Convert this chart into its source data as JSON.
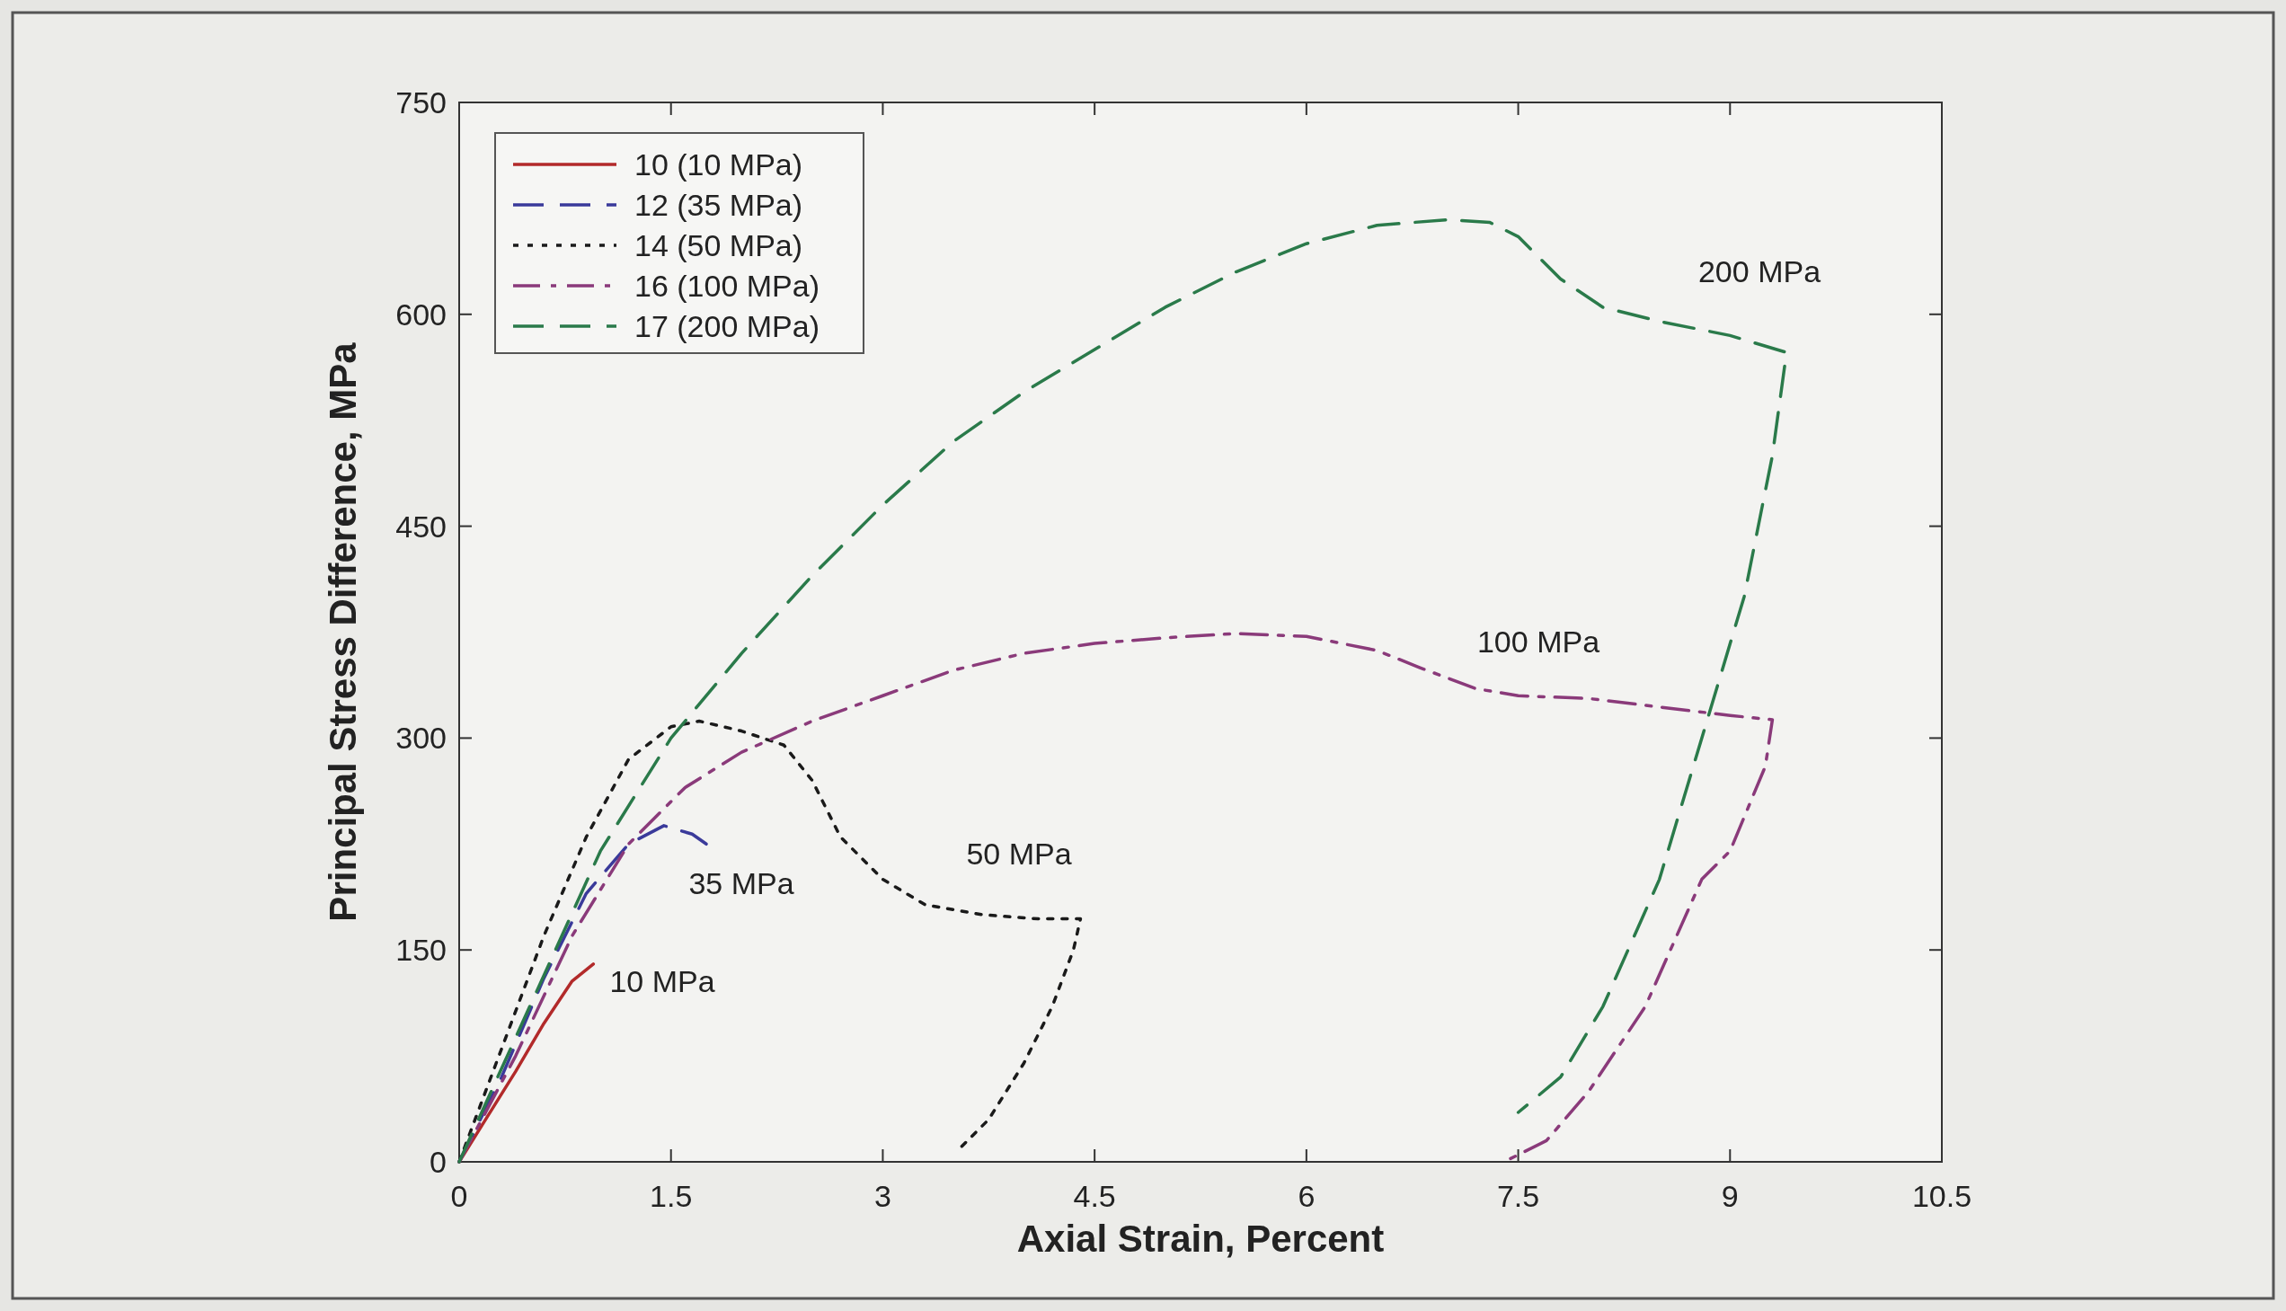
{
  "chart_data": {
    "type": "line",
    "xlabel": "Axial Strain, Percent",
    "ylabel": "Principal Stress Difference, MPa",
    "xlim": [
      0,
      10.5
    ],
    "xticks": [
      0,
      1.5,
      3,
      4.5,
      6,
      7.5,
      9,
      10.5
    ],
    "ylim": [
      0,
      750
    ],
    "yticks": [
      0,
      150,
      300,
      450,
      600,
      750
    ],
    "grid": false,
    "legend": "top left",
    "series": [
      {
        "name": "10 (10 MPa)",
        "color": "#b22a2a",
        "line_style": "solid",
        "x": [
          0,
          0.2,
          0.4,
          0.6,
          0.8,
          0.95
        ],
        "values": [
          0,
          32,
          64,
          98,
          128,
          140
        ]
      },
      {
        "name": "12 (35 MPa)",
        "color": "#3a3a9a",
        "line_style": "dashed",
        "x": [
          0,
          0.3,
          0.6,
          0.9,
          1.2,
          1.45,
          1.65,
          1.75
        ],
        "values": [
          0,
          60,
          130,
          190,
          225,
          238,
          232,
          225
        ]
      },
      {
        "name": "14 (50 MPa)",
        "color": "#1a1a1a",
        "line_style": "dotted",
        "x": [
          0,
          0.3,
          0.6,
          0.9,
          1.2,
          1.5,
          1.7,
          2.0,
          2.3,
          2.5,
          2.7,
          3.0,
          3.3,
          3.7,
          4.1,
          4.4,
          4.35,
          4.2,
          4.0,
          3.75,
          3.55
        ],
        "values": [
          0,
          80,
          160,
          230,
          285,
          308,
          312,
          305,
          295,
          270,
          230,
          200,
          182,
          175,
          172,
          172,
          150,
          110,
          70,
          30,
          10
        ]
      },
      {
        "name": "16 (100 MPa)",
        "color": "#8a3a7a",
        "line_style": "dashdot",
        "x": [
          0,
          0.4,
          0.8,
          1.2,
          1.6,
          2.0,
          2.5,
          3,
          3.5,
          4,
          4.5,
          5,
          5.5,
          6,
          6.5,
          6.8,
          7.2,
          7.5,
          8,
          8.5,
          9,
          9.3,
          9.25,
          9.0,
          8.8,
          8.4,
          8.0,
          7.7,
          7.4
        ],
        "values": [
          0,
          75,
          160,
          225,
          265,
          290,
          312,
          330,
          348,
          360,
          367,
          371,
          374,
          372,
          362,
          350,
          335,
          330,
          328,
          322,
          316,
          313,
          280,
          220,
          200,
          110,
          50,
          15,
          0
        ]
      },
      {
        "name": "17 (200 MPa)",
        "color": "#2a7a4a",
        "line_style": "dashed",
        "x": [
          0,
          0.5,
          1,
          1.5,
          2,
          2.5,
          3,
          3.5,
          4,
          4.5,
          5,
          5.5,
          6,
          6.5,
          7,
          7.3,
          7.5,
          7.8,
          8.1,
          8.5,
          9,
          9.4,
          9.3,
          9.1,
          8.8,
          8.5,
          8.1,
          7.8,
          7.5
        ],
        "values": [
          0,
          110,
          220,
          300,
          360,
          415,
          465,
          510,
          545,
          575,
          605,
          630,
          650,
          663,
          667,
          665,
          655,
          625,
          605,
          595,
          585,
          573,
          500,
          400,
          300,
          200,
          110,
          60,
          35
        ]
      }
    ],
    "annotations": [
      "200 MPa",
      "100 MPa",
      "50 MPa",
      "35 MPa",
      "10 MPa"
    ]
  }
}
